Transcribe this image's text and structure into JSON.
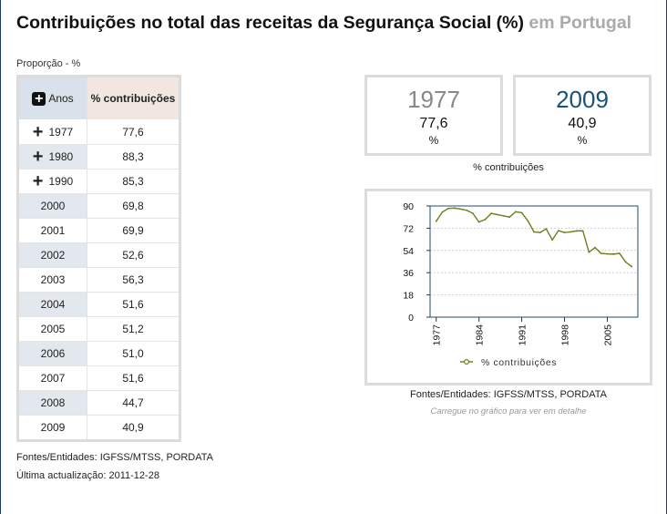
{
  "title": {
    "main": "Contribuições no total das receitas da Segurança Social (%)",
    "location": "em Portugal"
  },
  "unit_label": "Proporção - %",
  "table": {
    "col1_header": "Anos",
    "col2_header": "% contribuições",
    "rows": [
      {
        "year": "1977",
        "value": "77,6",
        "expandable": true
      },
      {
        "year": "1980",
        "value": "88,3",
        "expandable": true
      },
      {
        "year": "1990",
        "value": "85,3",
        "expandable": true
      },
      {
        "year": "2000",
        "value": "69,8",
        "expandable": false
      },
      {
        "year": "2001",
        "value": "69,9",
        "expandable": false
      },
      {
        "year": "2002",
        "value": "52,6",
        "expandable": false
      },
      {
        "year": "2003",
        "value": "56,3",
        "expandable": false
      },
      {
        "year": "2004",
        "value": "51,6",
        "expandable": false
      },
      {
        "year": "2005",
        "value": "51,2",
        "expandable": false
      },
      {
        "year": "2006",
        "value": "51,0",
        "expandable": false
      },
      {
        "year": "2007",
        "value": "51,6",
        "expandable": false
      },
      {
        "year": "2008",
        "value": "44,7",
        "expandable": false
      },
      {
        "year": "2009",
        "value": "40,9",
        "expandable": false
      }
    ]
  },
  "cards": [
    {
      "year": "1977",
      "value": "77,6",
      "unit": "%"
    },
    {
      "year": "2009",
      "value": "40,9",
      "unit": "%"
    }
  ],
  "cards_caption": "% contribuições",
  "chart_data": {
    "type": "line",
    "series": [
      {
        "name": "% contribuições",
        "color": "#6b7f1e",
        "x": [
          1977,
          1978,
          1979,
          1980,
          1981,
          1982,
          1983,
          1984,
          1985,
          1986,
          1987,
          1988,
          1989,
          1990,
          1991,
          1992,
          1993,
          1994,
          1995,
          1996,
          1997,
          1998,
          1999,
          2000,
          2001,
          2002,
          2003,
          2004,
          2005,
          2006,
          2007,
          2008,
          2009
        ],
        "y": [
          77.6,
          85,
          88,
          88.3,
          87.5,
          86.5,
          84,
          77,
          79,
          84,
          83,
          82,
          81,
          85.3,
          84.5,
          78,
          69,
          68.5,
          71.5,
          62.5,
          70,
          68.5,
          69,
          69.8,
          69.9,
          52.6,
          56.3,
          51.6,
          51.2,
          51.0,
          51.6,
          44.7,
          40.9
        ]
      }
    ],
    "x_ticks": [
      "1977",
      "1984",
      "1991",
      "1998",
      "2005"
    ],
    "y_ticks": [
      "0",
      "18",
      "36",
      "54",
      "72",
      "90"
    ],
    "xlim": [
      1976,
      2010
    ],
    "ylim": [
      0,
      90
    ],
    "grid": true,
    "legend_position": "bottom"
  },
  "source_text": "Fontes/Entidades: IGFSS/MTSS, PORDATA",
  "hint_text": "Carregue no gráfico para ver em detalhe",
  "footer": {
    "sources": "Fontes/Entidades: IGFSS/MTSS, PORDATA",
    "updated": "Última actualização: 2011-12-28"
  }
}
